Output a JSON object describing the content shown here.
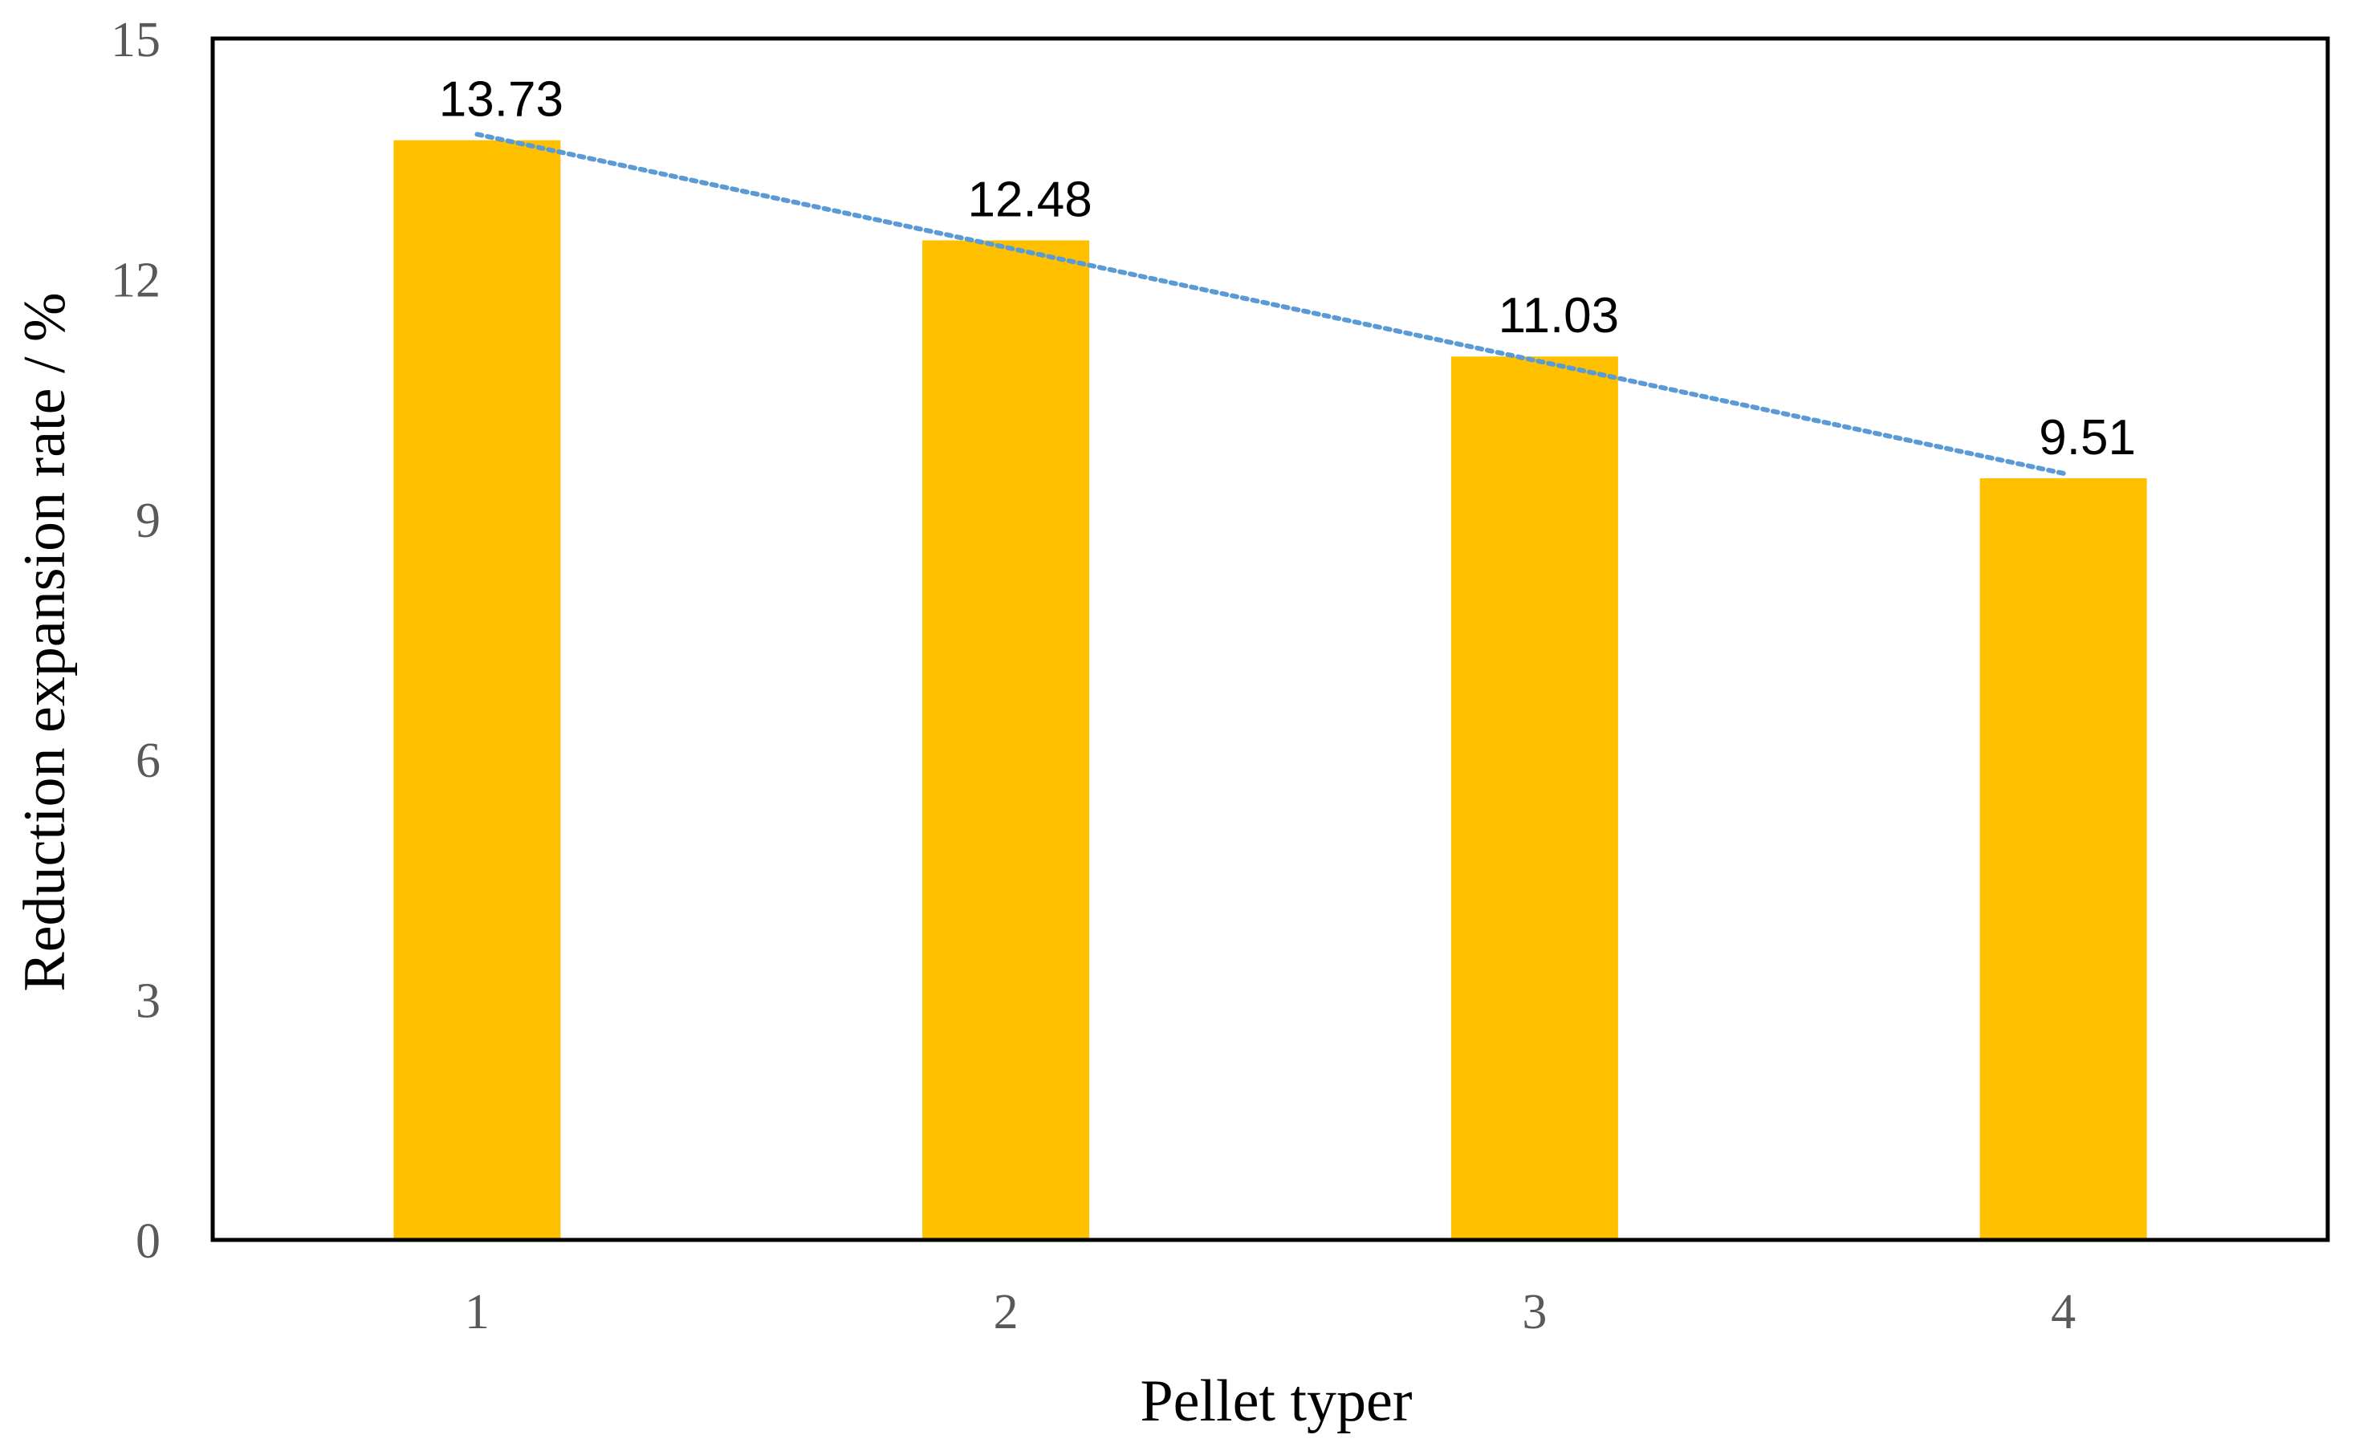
{
  "chart_data": {
    "type": "bar",
    "categories": [
      "1",
      "2",
      "3",
      "4"
    ],
    "values": [
      13.73,
      12.48,
      11.03,
      9.51
    ],
    "data_labels": [
      "13.73",
      "12.48",
      "11.03",
      "9.51"
    ],
    "title": "",
    "xlabel": "Pellet typer",
    "ylabel": "Reduction expansion rate / %",
    "ylim": [
      0,
      15
    ],
    "yticks": [
      0,
      3,
      6,
      9,
      12,
      15
    ],
    "ytick_labels": [
      "0",
      "3",
      "6",
      "9",
      "12",
      "15"
    ],
    "grid": false,
    "legend": "none",
    "trendline": "linear",
    "colors": {
      "bar": "#FFC000",
      "trendline": "#5B9BD5",
      "frame": "#000000"
    }
  }
}
